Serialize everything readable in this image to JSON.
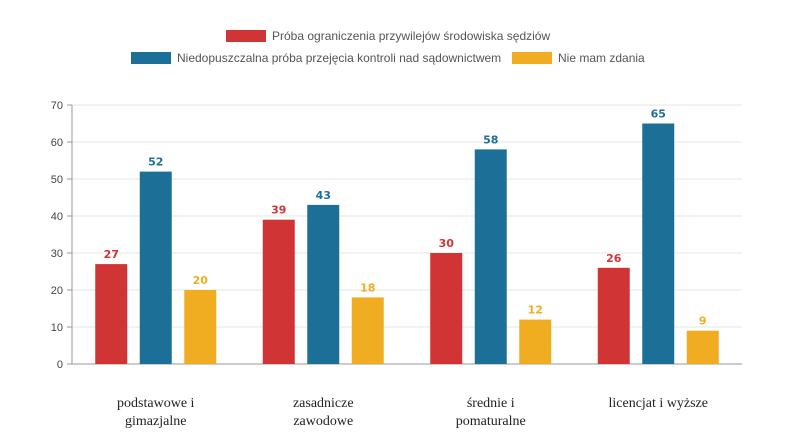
{
  "chart_data": {
    "type": "bar",
    "categories": [
      [
        "podstawowe i",
        "gimazjalne"
      ],
      [
        "zasadnicze",
        "zawodowe"
      ],
      [
        "średnie i",
        "pomaturalne"
      ],
      [
        "licencjat i wyższe"
      ]
    ],
    "series": [
      {
        "name": "Próba ograniczenia przywilejów środowiska sędziów",
        "color": "#d03434",
        "values": [
          27,
          39,
          30,
          26
        ]
      },
      {
        "name": "Niedopuszczalna próba przejęcia kontroli nad sądownictwem",
        "color": "#1c7098",
        "values": [
          52,
          43,
          58,
          65
        ]
      },
      {
        "name": "Nie mam zdania",
        "color": "#f0ad22",
        "values": [
          20,
          18,
          12,
          9
        ]
      }
    ],
    "yticks": [
      "0",
      "10",
      "20",
      "30",
      "40",
      "50",
      "60",
      "70"
    ],
    "ylim": [
      0,
      70
    ],
    "grid": true,
    "legend_position": "top",
    "title": "",
    "xlabel": "",
    "ylabel": ""
  }
}
